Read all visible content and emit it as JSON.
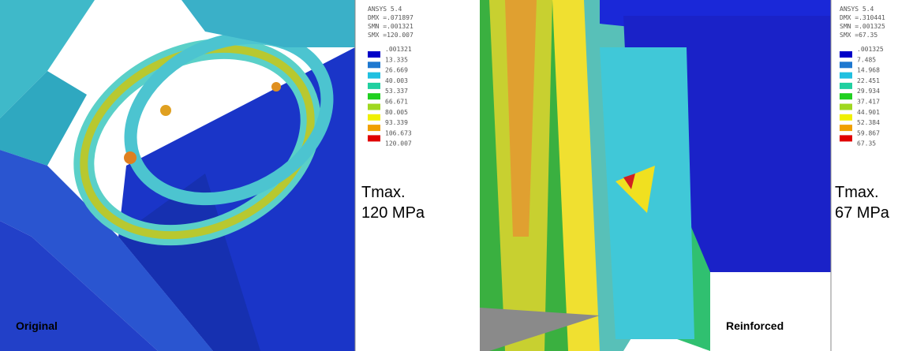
{
  "panels": [
    {
      "header": [
        "ANSYS 5.4",
        "DMX =.071897",
        "SMN =.001321",
        "SMX =120.007"
      ],
      "legend": [
        ".001321",
        "13.335",
        "26.669",
        "40.003",
        "53.337",
        "66.671",
        "80.005",
        "93.339",
        "106.673",
        "120.007"
      ],
      "annotation": [
        "Tmax.",
        "120 MPa"
      ],
      "label": "Original"
    },
    {
      "header": [
        "ANSYS 5.4",
        "DMX =.310441",
        "SMN =.001325",
        "SMX =67.35"
      ],
      "legend": [
        ".001325",
        "7.485",
        "14.968",
        "22.451",
        "29.934",
        "37.417",
        "44.901",
        "52.384",
        "59.867",
        "67.35"
      ],
      "annotation": [
        "Tmax.",
        "67 MPa"
      ],
      "label": "Reinforced"
    }
  ]
}
